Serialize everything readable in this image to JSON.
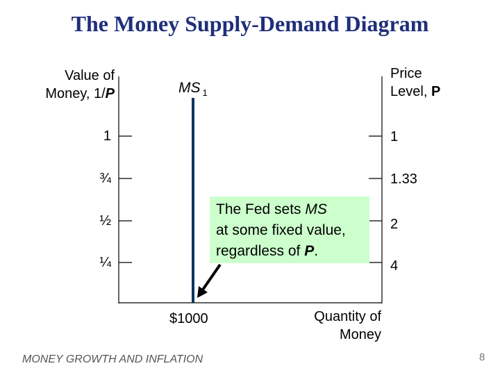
{
  "title": "The Money Supply-Demand Diagram",
  "left_axis": {
    "label_line1": "Value of",
    "label_line2_prefix": "Money, 1/",
    "label_line2_var": "P",
    "ticks": [
      "1",
      "¾",
      "½",
      "¼"
    ]
  },
  "right_axis": {
    "label_line1": "Price",
    "label_line2_prefix": "Level, ",
    "label_line2_var": "P",
    "ticks": [
      "1",
      "1.33",
      "2",
      "4"
    ]
  },
  "curve": {
    "name": "MS",
    "subscript": "1",
    "quantity_label": "$1000",
    "color": "#0e3463"
  },
  "x_axis_label_line1": "Quantity of",
  "x_axis_label_line2": "Money",
  "callout": {
    "line1_prefix": "The Fed sets ",
    "line1_var": "MS",
    "line2": "at some fixed value,",
    "line3_prefix": "regardless of ",
    "line3_var": "P",
    "line3_suffix": ".",
    "color": "#ccffcc"
  },
  "footer": "MONEY GROWTH AND INFLATION",
  "page_number": "8"
}
